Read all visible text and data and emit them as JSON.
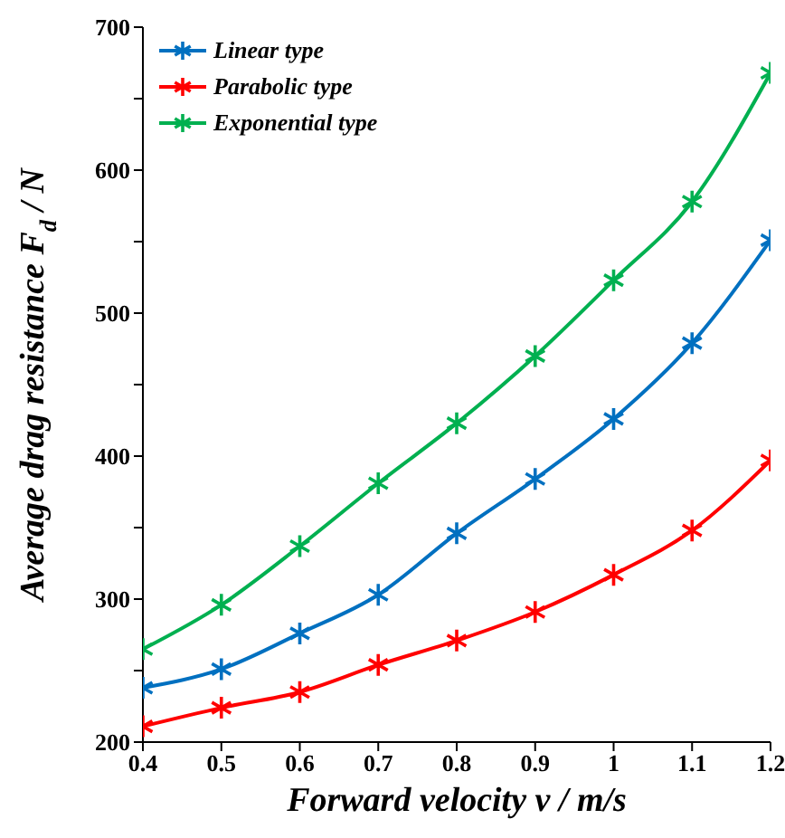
{
  "chart_data": {
    "type": "line",
    "xlabel": "Forward velocity v / m/s",
    "ylabel": "Average drag resistance F$_{d}$ / N",
    "x": [
      0.4,
      0.5,
      0.6,
      0.7,
      0.8,
      0.9,
      1.0,
      1.1,
      1.2
    ],
    "series": [
      {
        "name": "Linear type",
        "color": "#0070c0",
        "values": [
          238,
          251,
          276,
          303,
          346,
          384,
          426,
          479,
          551
        ]
      },
      {
        "name": "Parabolic type",
        "color": "#ff0000",
        "values": [
          211,
          224,
          235,
          254,
          271,
          291,
          317,
          348,
          397
        ]
      },
      {
        "name": "Exponential type",
        "color": "#00b050",
        "values": [
          265,
          296,
          337,
          381,
          423,
          470,
          523,
          578,
          668
        ]
      }
    ],
    "xlim": [
      0.4,
      1.2
    ],
    "xticks": [
      0.4,
      0.5,
      0.6,
      0.7,
      0.8,
      0.9,
      {
        "value": 1.0,
        "label": "1"
      },
      1.1,
      1.2
    ],
    "ylim": [
      200,
      700
    ],
    "yticks": [
      200,
      {
        "value": 250,
        "label": null
      },
      300,
      {
        "value": 350,
        "label": null
      },
      400,
      {
        "value": 450,
        "label": null
      },
      500,
      {
        "value": 550,
        "label": null
      },
      600,
      {
        "value": 650,
        "label": null
      },
      700
    ],
    "grid": false,
    "legend": "top left",
    "marker": "cross",
    "line_style": "solid"
  }
}
